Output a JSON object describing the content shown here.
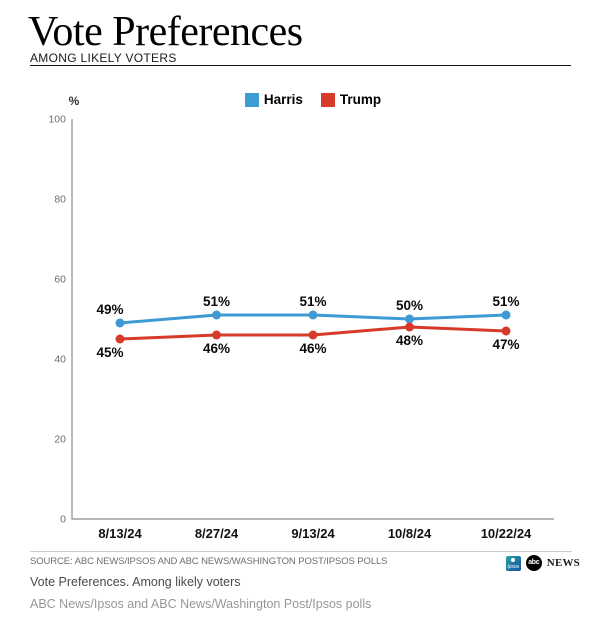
{
  "header": {
    "title": "Vote Preferences",
    "subtitle": "AMONG LIKELY VOTERS"
  },
  "chart_data": {
    "type": "line",
    "title": "Vote Preferences",
    "x": [
      "8/13/24",
      "8/27/24",
      "9/13/24",
      "10/8/24",
      "10/22/24"
    ],
    "series": [
      {
        "name": "Harris",
        "color": "#3d9ad2",
        "values": [
          49,
          51,
          51,
          50,
          51
        ],
        "point_labels": [
          "49%",
          "51%",
          "51%",
          "50%",
          "51%"
        ],
        "label_position": "above"
      },
      {
        "name": "Trump",
        "color": "#d63b2a",
        "values": [
          45,
          46,
          46,
          48,
          47
        ],
        "point_labels": [
          "45%",
          "46%",
          "46%",
          "48%",
          "47%"
        ],
        "label_position": "below"
      }
    ],
    "ylabel": "%",
    "yticks": [
      0,
      20,
      40,
      60,
      80,
      100
    ],
    "ylim": [
      0,
      100
    ],
    "grid": false,
    "legend_position": "top-center",
    "axis_color": "#8c8c8c",
    "tick_label_color": "#6e6e6e"
  },
  "footer": {
    "source": "SOURCE: ABC NEWS/IPSOS AND ABC NEWS/WASHINGTON POST/IPSOS POLLS",
    "caption": "Vote Preferences. Among likely voters",
    "subcaption": "ABC News/Ipsos and ABC News/Washington Post/Ipsos polls",
    "logos": {
      "ipsos_label": "Ipsos",
      "abc_label": "abc",
      "abc_news_label": "NEWS"
    }
  }
}
